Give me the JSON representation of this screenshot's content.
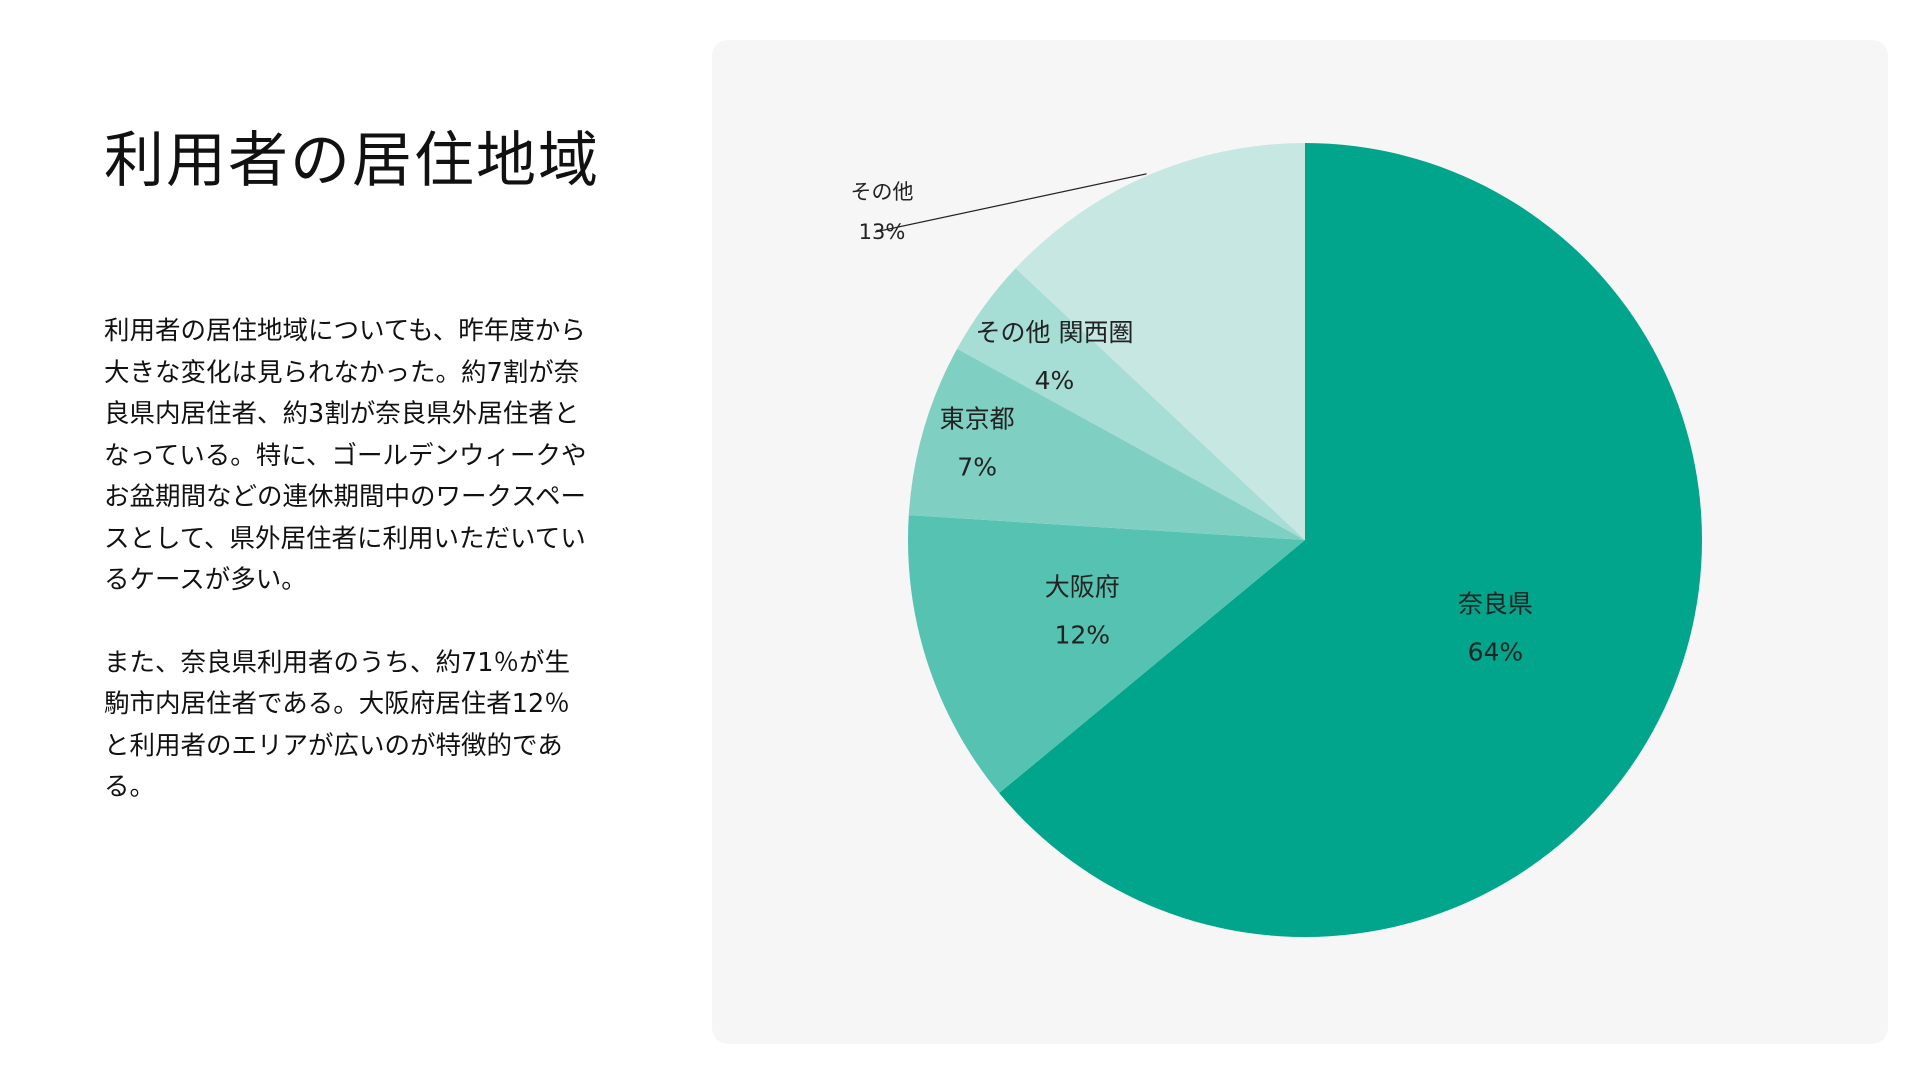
{
  "page": {
    "title": "利用者の居住地域",
    "paragraphs": [
      "利用者の居住地域についても、昨年度から大きな変化は見られなかった。約7割が奈良県内居住者、約3割が奈良県外居住者となっている。特に、ゴールデンウィークやお盆期間などの連休期間中のワークスペースとして、県外居住者に利用いただいているケースが多い。",
      "また、奈良県利用者のうち、約71％が生駒市内居住者である。大阪府居住者12％と利用者のエリアが広いのが特徴的である。"
    ]
  },
  "chart_data": {
    "type": "pie",
    "title": "",
    "unit": "%",
    "start_angle": "top",
    "direction": "clockwise",
    "slices": [
      {
        "label": "奈良県",
        "value": 64,
        "display": "64%",
        "color": "#00a58c"
      },
      {
        "label": "大阪府",
        "value": 12,
        "display": "12%",
        "color": "#56c2b1"
      },
      {
        "label": "東京都",
        "value": 7,
        "display": "7%",
        "color": "#80cfc3"
      },
      {
        "label": "その他 関西圏",
        "value": 4,
        "display": "4%",
        "color": "#a6ddd4"
      },
      {
        "label": "その他",
        "value": 13,
        "display": "13%",
        "color": "#c7e7e3"
      }
    ],
    "legend": "none"
  }
}
